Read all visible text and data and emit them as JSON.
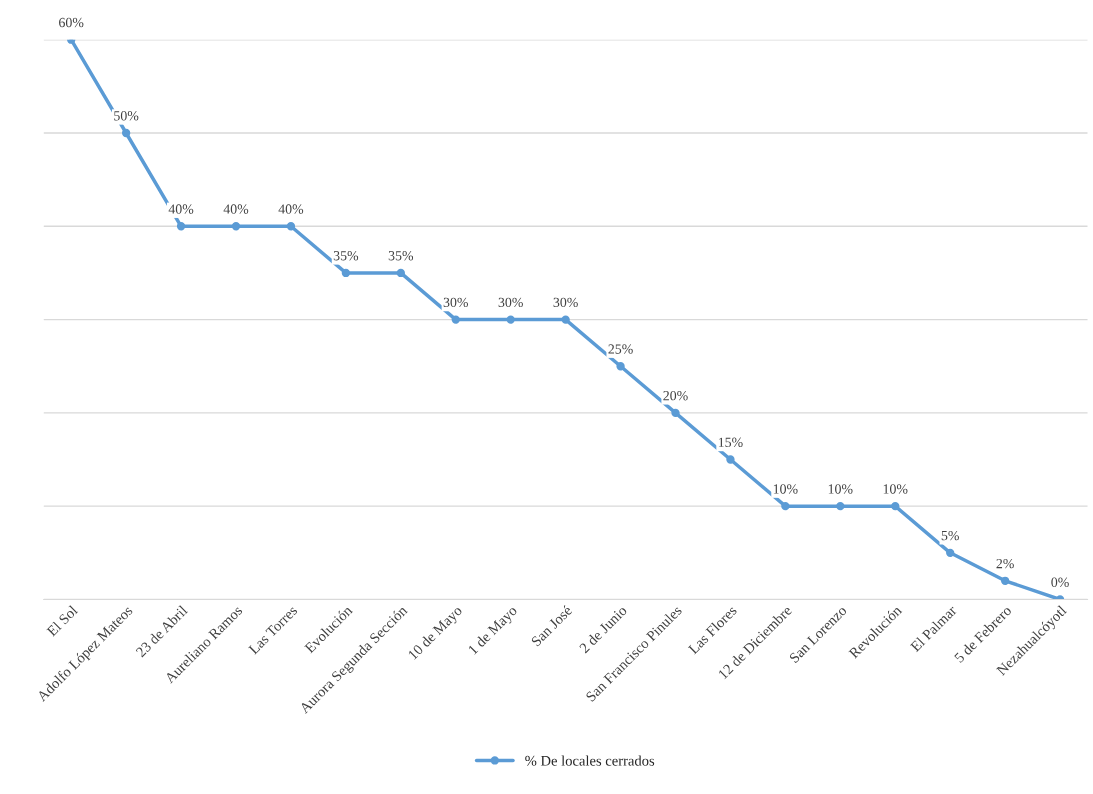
{
  "chart_data": {
    "type": "line",
    "categories": [
      "El Sol",
      "Adolfo López Mateos",
      "23 de Abril",
      "Aureliano Ramos",
      "Las Torres",
      "Evolución",
      "Aurora Segunda Sección",
      "10 de Mayo",
      "1 de Mayo",
      "San José",
      "2 de Junio",
      "San Francisco Pinules",
      "Las Flores",
      "12 de Diciembre",
      "San Lorenzo",
      "Revolución",
      "El Palmar",
      "5 de Febrero",
      "Nezahualcóyotl"
    ],
    "series": [
      {
        "name": "% De locales cerrados",
        "color": "#5b9bd5",
        "values": [
          60,
          50,
          40,
          40,
          40,
          35,
          35,
          30,
          30,
          30,
          25,
          20,
          15,
          10,
          10,
          10,
          5,
          2,
          0
        ],
        "value_labels": [
          "60%",
          "50%",
          "40%",
          "40%",
          "40%",
          "35%",
          "35%",
          "30%",
          "30%",
          "30%",
          "25%",
          "20%",
          "15%",
          "10%",
          "10%",
          "10%",
          "5%",
          "2%",
          "0%"
        ]
      }
    ],
    "ylim": [
      0,
      60
    ],
    "yticks": [
      {
        "value": 0,
        "label": null
      },
      {
        "value": 10,
        "label": null
      },
      {
        "value": 20,
        "label": null
      },
      {
        "value": 30,
        "label": null
      },
      {
        "value": 40,
        "label": null
      },
      {
        "value": 50,
        "label": null
      },
      {
        "value": 60,
        "label": null
      }
    ],
    "tick_labels": "x",
    "grid": "y",
    "legend": "bottom",
    "marker": "circle",
    "line_style": "solid"
  }
}
